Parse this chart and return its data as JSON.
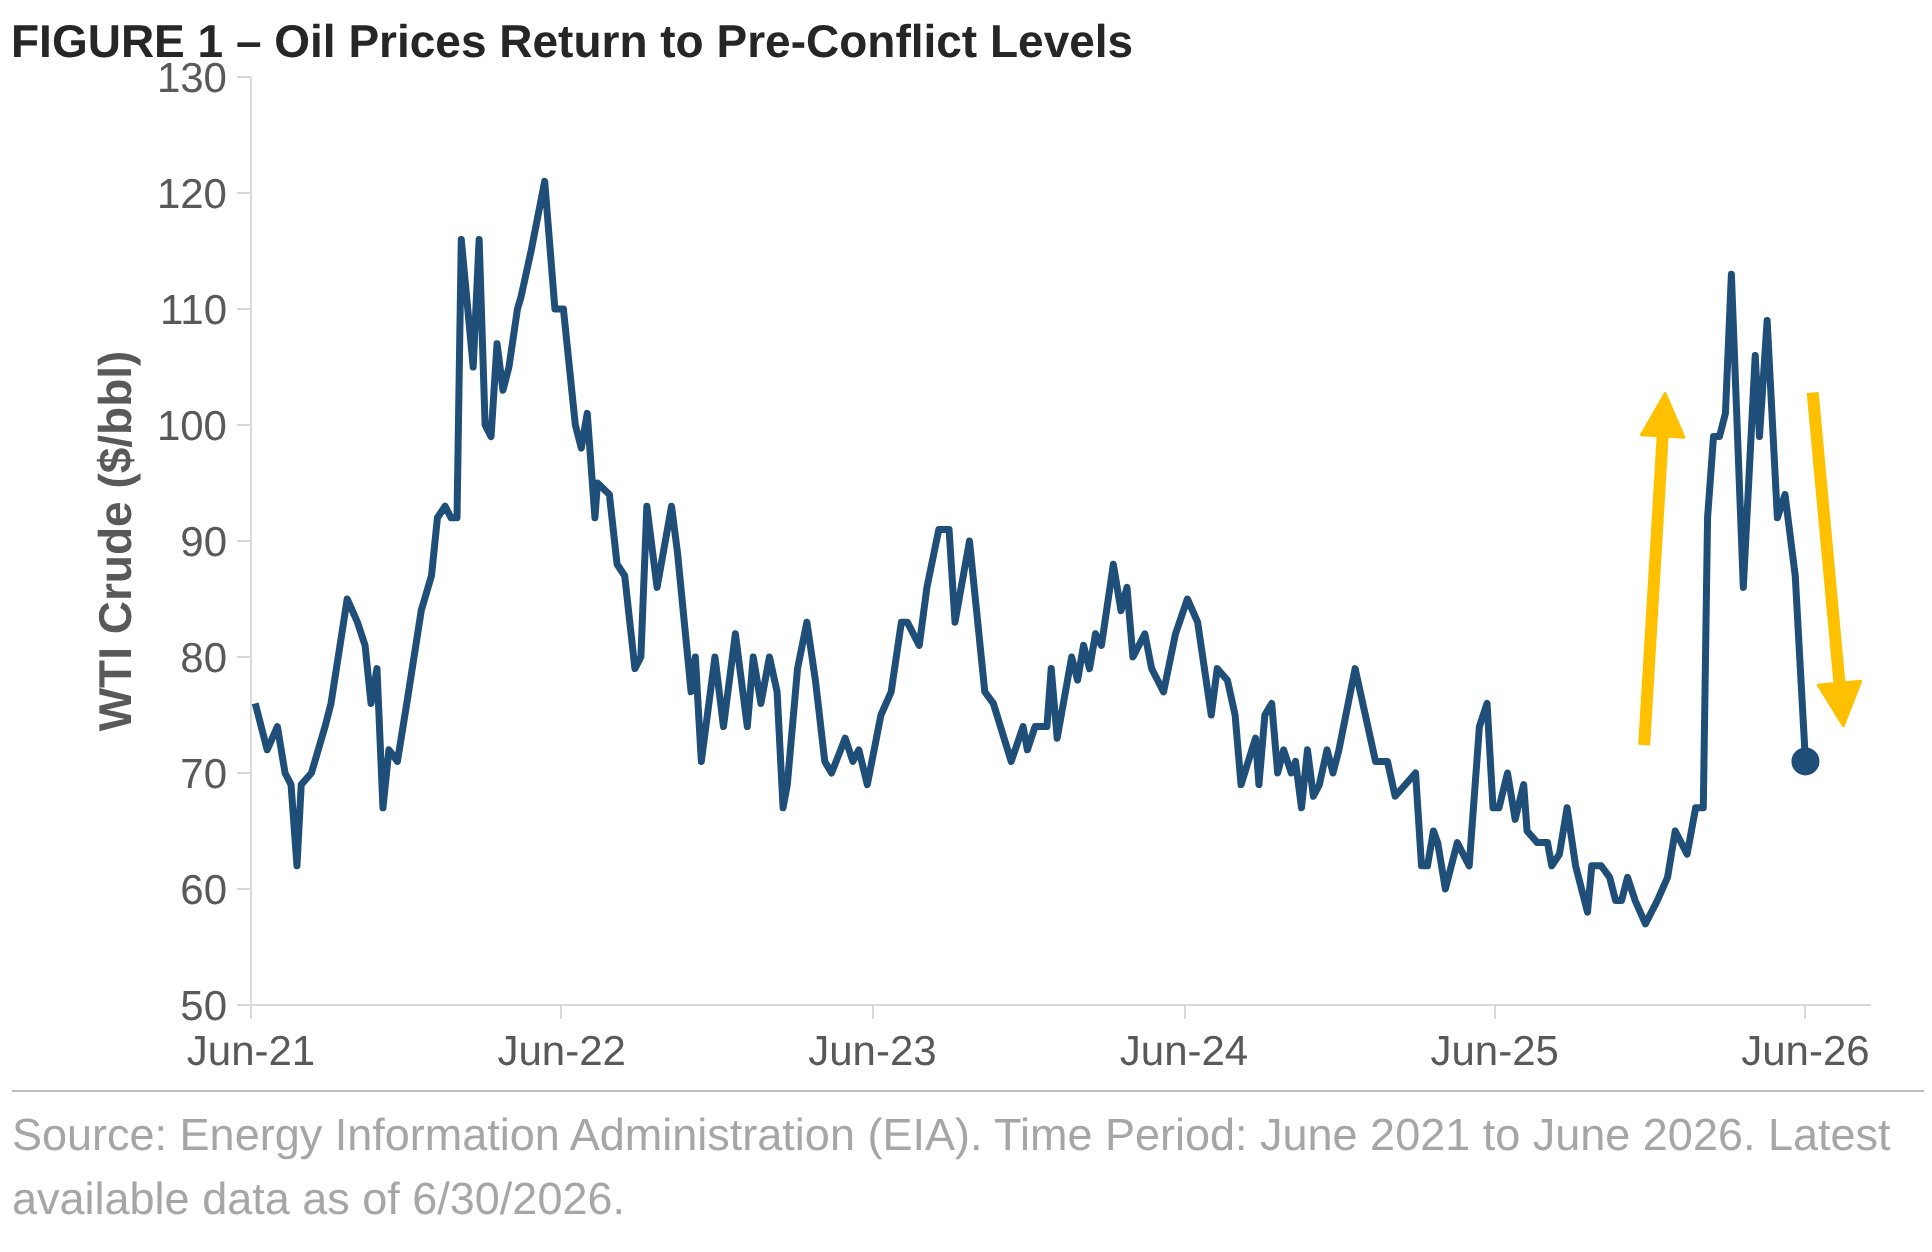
{
  "chart_data": {
    "type": "line",
    "title": "FIGURE 1 – Oil Prices Return to Pre-Conflict Levels",
    "ylabel": "WTI Crude ($/bbl)",
    "annotations": [
      "Source: Energy Information Administration (EIA). Time Period: June 2021 to June 2026. Latest available data as of 6/30/2026."
    ],
    "xlim": [
      "2021-06-30",
      "2026-09-15"
    ],
    "xticks": [
      {
        "value": "2021-06-30",
        "label": "Jun-21"
      },
      {
        "value": "2022-06-30",
        "label": "Jun-22"
      },
      {
        "value": "2023-06-30",
        "label": "Jun-23"
      },
      {
        "value": "2024-06-30",
        "label": "Jun-24"
      },
      {
        "value": "2025-06-30",
        "label": "Jun-25"
      },
      {
        "value": "2026-06-30",
        "label": "Jun-26"
      }
    ],
    "ylim": [
      50,
      130
    ],
    "yticks": [
      50,
      60,
      70,
      80,
      90,
      100,
      110,
      120,
      130
    ],
    "grid": false,
    "line_style": "solid",
    "series": [
      {
        "color": "#1f4e79",
        "marker": "none",
        "x": [
          "2021-07-05",
          "2021-07-12",
          "2021-07-19",
          "2021-07-31",
          "2021-08-09",
          "2021-08-16",
          "2021-08-23",
          "2021-08-28",
          "2021-09-09",
          "2021-09-25",
          "2021-10-02",
          "2021-10-21",
          "2021-11-02",
          "2021-11-11",
          "2021-11-18",
          "2021-11-25",
          "2021-12-02",
          "2021-12-09",
          "2021-12-19",
          "2021-12-30",
          "2022-01-16",
          "2022-01-28",
          "2022-02-04",
          "2022-02-13",
          "2022-02-20",
          "2022-02-27",
          "2022-03-04",
          "2022-03-18",
          "2022-03-25",
          "2022-04-01",
          "2022-04-08",
          "2022-04-15",
          "2022-04-22",
          "2022-04-29",
          "2022-05-09",
          "2022-05-13",
          "2022-05-25",
          "2022-06-10",
          "2022-06-22",
          "2022-07-02",
          "2022-07-16",
          "2022-07-23",
          "2022-07-30",
          "2022-08-08",
          "2022-08-11",
          "2022-08-25",
          "2022-09-03",
          "2022-09-12",
          "2022-09-24",
          "2022-10-01",
          "2022-10-08",
          "2022-10-20",
          "2022-11-06",
          "2022-11-13",
          "2022-11-29",
          "2022-12-04",
          "2022-12-11",
          "2022-12-27",
          "2023-01-06",
          "2023-01-20",
          "2023-02-03",
          "2023-02-10",
          "2023-02-19",
          "2023-03-01",
          "2023-03-10",
          "2023-03-17",
          "2023-03-22",
          "2023-04-03",
          "2023-04-14",
          "2023-04-24",
          "2023-05-05",
          "2023-05-13",
          "2023-05-29",
          "2023-06-07",
          "2023-06-14",
          "2023-06-24",
          "2023-07-10",
          "2023-07-22",
          "2023-08-03",
          "2023-08-10",
          "2023-08-24",
          "2023-09-02",
          "2023-09-16",
          "2023-09-28",
          "2023-10-05",
          "2023-10-22",
          "2023-11-09",
          "2023-11-19",
          "2023-12-10",
          "2023-12-24",
          "2023-12-29",
          "2024-01-07",
          "2024-01-21",
          "2024-01-26",
          "2024-02-02",
          "2024-02-19",
          "2024-02-26",
          "2024-03-04",
          "2024-03-11",
          "2024-03-18",
          "2024-03-25",
          "2024-04-08",
          "2024-04-17",
          "2024-04-24",
          "2024-05-01",
          "2024-05-15",
          "2024-05-23",
          "2024-06-06",
          "2024-06-20",
          "2024-07-04",
          "2024-07-16",
          "2024-08-01",
          "2024-08-08",
          "2024-08-20",
          "2024-08-29",
          "2024-09-05",
          "2024-09-22",
          "2024-09-26",
          "2024-10-03",
          "2024-10-11",
          "2024-10-18",
          "2024-10-25",
          "2024-11-03",
          "2024-11-08",
          "2024-11-15",
          "2024-11-22",
          "2024-11-29",
          "2024-12-06",
          "2024-12-15",
          "2024-12-22",
          "2024-12-29",
          "2025-01-17",
          "2025-01-29",
          "2025-02-10",
          "2025-02-24",
          "2025-03-05",
          "2025-03-29",
          "2025-04-05",
          "2025-04-12",
          "2025-04-19",
          "2025-04-24",
          "2025-05-03",
          "2025-05-17",
          "2025-05-31",
          "2025-06-12",
          "2025-06-21",
          "2025-06-28",
          "2025-07-05",
          "2025-07-15",
          "2025-07-24",
          "2025-08-03",
          "2025-08-07",
          "2025-08-19",
          "2025-08-31",
          "2025-09-05",
          "2025-09-14",
          "2025-09-23",
          "2025-10-03",
          "2025-10-17",
          "2025-10-22",
          "2025-11-02",
          "2025-11-12",
          "2025-11-19",
          "2025-11-26",
          "2025-12-03",
          "2025-12-12",
          "2025-12-24",
          "2026-01-07",
          "2026-01-19",
          "2026-01-28",
          "2026-02-11",
          "2026-02-21",
          "2026-03-02",
          "2026-03-07",
          "2026-03-14",
          "2026-03-21",
          "2026-03-28",
          "2026-04-04",
          "2026-04-18",
          "2026-05-02",
          "2026-05-07",
          "2026-05-16",
          "2026-05-28",
          "2026-06-06",
          "2026-06-18",
          "2026-06-30"
        ],
        "values": [
          76,
          74,
          72,
          74,
          70,
          69,
          62,
          69,
          70,
          74,
          76,
          85,
          83,
          81,
          76,
          79,
          67,
          72,
          71,
          76,
          84,
          87,
          92,
          93,
          92,
          92,
          116,
          105,
          116,
          100,
          99,
          107,
          103,
          105,
          110,
          111,
          115,
          121,
          110,
          110,
          100,
          98,
          101,
          92,
          95,
          94,
          88,
          87,
          79,
          80,
          93,
          86,
          93,
          89,
          77,
          80,
          71,
          80,
          74,
          82,
          74,
          80,
          76,
          80,
          77,
          67,
          69,
          79,
          83,
          78,
          71,
          70,
          73,
          71,
          72,
          69,
          75,
          77,
          83,
          83,
          81,
          86,
          91,
          91,
          83,
          90,
          77,
          76,
          71,
          74,
          72,
          74,
          74,
          79,
          73,
          80,
          78,
          81,
          79,
          82,
          81,
          88,
          84,
          86,
          80,
          82,
          79,
          77,
          82,
          85,
          83,
          75,
          79,
          78,
          75,
          69,
          73,
          69,
          75,
          76,
          70,
          72,
          70,
          71,
          67,
          72,
          68,
          69,
          72,
          70,
          72,
          79,
          75,
          71,
          71,
          68,
          70,
          62,
          62,
          65,
          64,
          60,
          64,
          62,
          74,
          76,
          67,
          67,
          70,
          66,
          69,
          65,
          64,
          64,
          62,
          63,
          67,
          62,
          58,
          62,
          62,
          61,
          59,
          59,
          61,
          59,
          57,
          59,
          61,
          65,
          63,
          67,
          67,
          92,
          99,
          99,
          101,
          113,
          86,
          106,
          99,
          109,
          92,
          94,
          87,
          71
        ]
      },
      {
        "type": "scatter",
        "color": "#1f4e79",
        "marker": "circle",
        "x": [
          "2026-06-30"
        ],
        "values": [
          71
        ]
      }
    ]
  }
}
